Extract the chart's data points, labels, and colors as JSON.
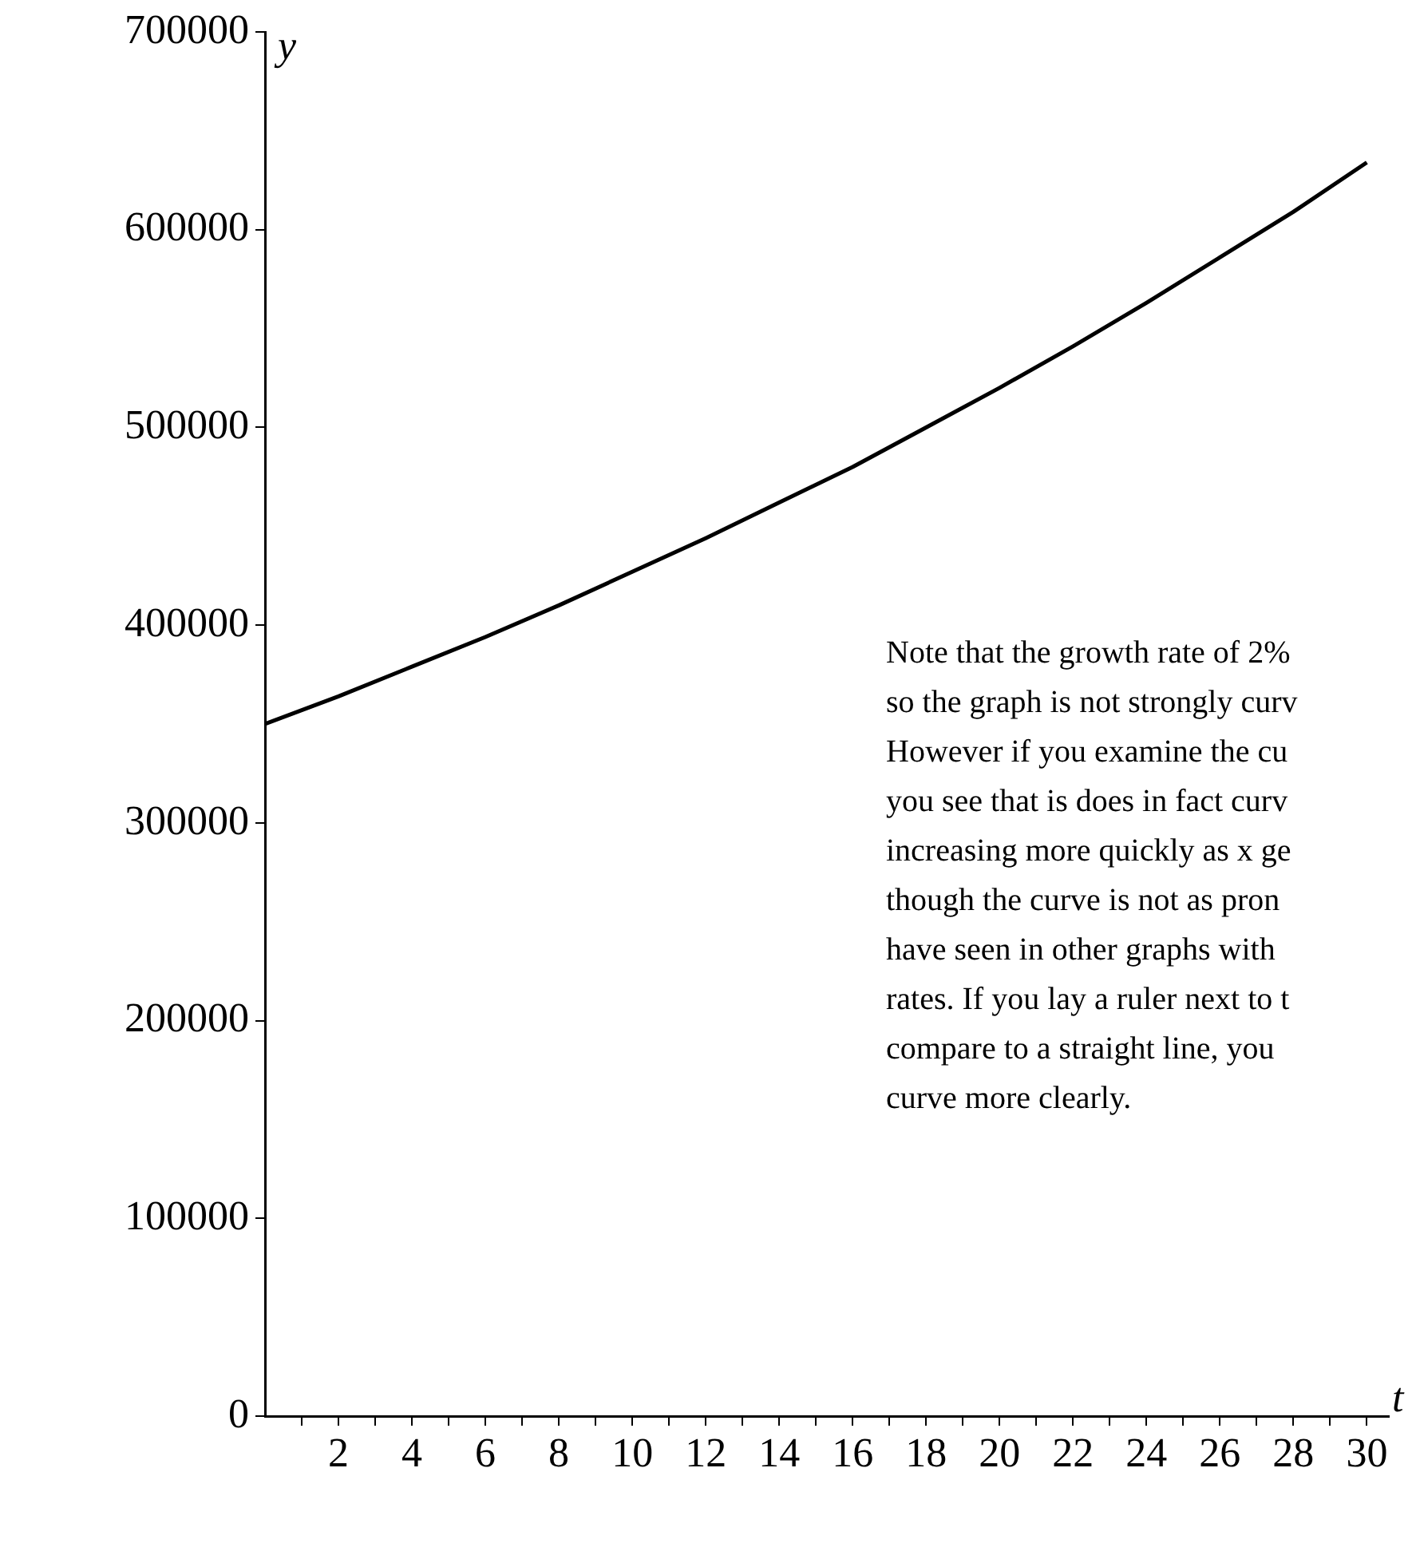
{
  "chart_data": {
    "type": "line",
    "xlabel": "t",
    "ylabel": "y",
    "x": [
      0,
      2,
      4,
      6,
      8,
      10,
      12,
      14,
      16,
      18,
      20,
      22,
      24,
      26,
      28,
      30
    ],
    "series": [
      {
        "color": "#000000",
        "values": [
          350000,
          364000,
          379000,
          394000,
          410000,
          427000,
          444000,
          462000,
          480000,
          500000,
          520000,
          541000,
          563000,
          586000,
          609000,
          634000
        ]
      }
    ],
    "xlim": [
      0,
      30.6
    ],
    "ylim": [
      0,
      700000
    ],
    "xticks": [
      {
        "value": 1,
        "label": null
      },
      2,
      {
        "value": 3,
        "label": null
      },
      4,
      {
        "value": 5,
        "label": null
      },
      6,
      {
        "value": 7,
        "label": null
      },
      8,
      {
        "value": 9,
        "label": null
      },
      10,
      {
        "value": 11,
        "label": null
      },
      12,
      {
        "value": 13,
        "label": null
      },
      14,
      {
        "value": 15,
        "label": null
      },
      16,
      {
        "value": 17,
        "label": null
      },
      18,
      {
        "value": 19,
        "label": null
      },
      20,
      {
        "value": 21,
        "label": null
      },
      22,
      {
        "value": 23,
        "label": null
      },
      24,
      {
        "value": 25,
        "label": null
      },
      26,
      {
        "value": 27,
        "label": null
      },
      28,
      {
        "value": 29,
        "label": null
      },
      30
    ],
    "yticks": [
      0,
      100000,
      200000,
      300000,
      400000,
      500000,
      600000,
      700000
    ],
    "marker": "none",
    "line_style": "solid",
    "annotations": [
      "Note that the growth rate of 2%\nso the graph is not strongly curv\nHowever if you examine the cu\nyou see that is does in fact curv\nincreasing more quickly as x ge\nthough the curve is not as pron\nhave seen in other graphs with\nrates. If you lay a ruler next to t\ncompare to a straight line, you\ncurve more clearly."
    ]
  }
}
